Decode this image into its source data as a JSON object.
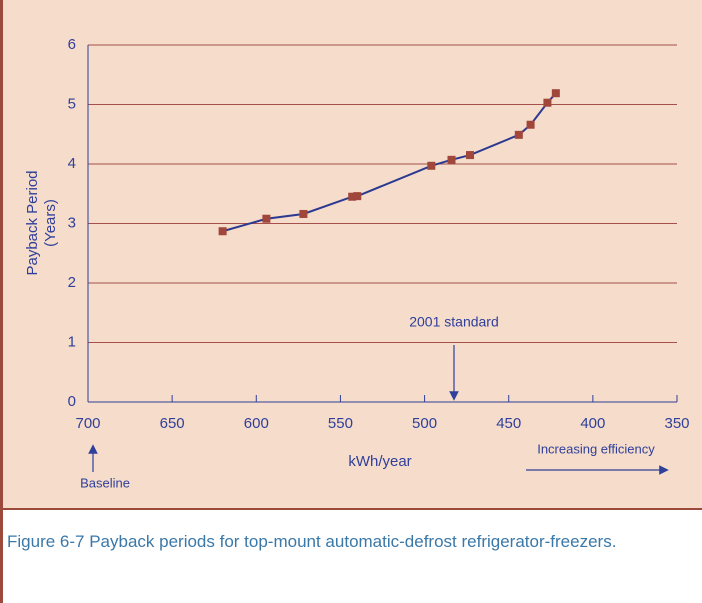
{
  "caption": "Figure 6-7  Payback periods for top-mount automatic-defrost refrigerator-freezers.",
  "chart_data": {
    "type": "line",
    "xlabel": "kWh/year",
    "ylabel": [
      "Payback Period",
      "(Years)"
    ],
    "annotations": [
      "2001 standard",
      "Baseline",
      "Increasing efficiency"
    ],
    "x": [
      620,
      594,
      572,
      543,
      540,
      496,
      484,
      473,
      444,
      437,
      427,
      422
    ],
    "series": [
      {
        "color": "#2b3990",
        "marker_color": "#a0463a",
        "values": [
          2.87,
          3.08,
          3.16,
          3.45,
          3.46,
          3.97,
          4.07,
          4.15,
          4.49,
          4.66,
          5.03,
          5.19
        ]
      }
    ],
    "xlim": [
      700,
      350
    ],
    "xticks": [
      700,
      650,
      600,
      550,
      500,
      450,
      400,
      350
    ],
    "ylim": [
      0,
      6
    ],
    "yticks": [
      0,
      1,
      2,
      3,
      4,
      5,
      6
    ],
    "grid": true
  }
}
